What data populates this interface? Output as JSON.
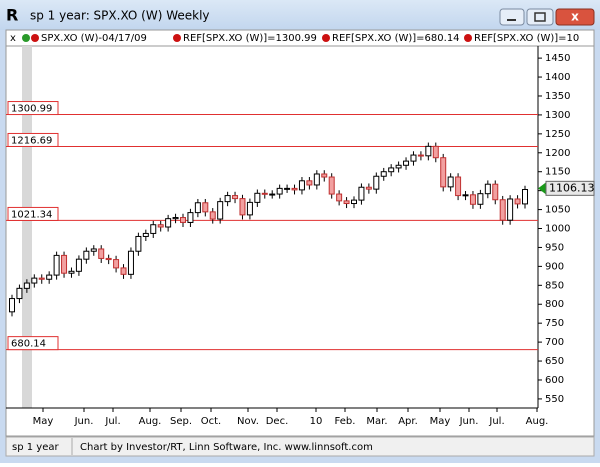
{
  "window": {
    "title": "sp 1 year: SPX.XO (W) Weekly"
  },
  "legend": [
    "SPX.XO (W)-04/17/09",
    "REF[SPX.XO (W)]=1300.99",
    "REF[SPX.XO (W)]=680.14",
    "REF[SPX.XO (W)]=10"
  ],
  "status": {
    "left": "sp 1 year",
    "right": "Chart by Investor/RT, Linn Software, Inc. www.linnsoft.com"
  },
  "chart_data": {
    "type": "candlestick",
    "x_labels": [
      "May",
      "Jun.",
      "Jul.",
      "Aug.",
      "Sep.",
      "Oct.",
      "Nov.",
      "Dec.",
      "10",
      "Feb.",
      "Mar.",
      "Apr.",
      "May",
      "Jun.",
      "Jul.",
      "Aug."
    ],
    "open": [
      780,
      815,
      842,
      856,
      869,
      866,
      877,
      929,
      882,
      887,
      919,
      940,
      946,
      921,
      918,
      896,
      879,
      940,
      979,
      987,
      1010,
      1004,
      1026,
      1029,
      1016,
      1042,
      1068,
      1044,
      1025,
      1071,
      1087,
      1079,
      1036,
      1069,
      1093,
      1091,
      1091,
      1106,
      1106,
      1102,
      1126,
      1115,
      1144,
      1136,
      1091,
      1073,
      1066,
      1075,
      1109,
      1104,
      1138,
      1150,
      1160,
      1167,
      1178,
      1194,
      1192,
      1217,
      1187,
      1110,
      1136,
      1087,
      1089,
      1064,
      1092,
      1117,
      1076,
      1022,
      1078,
      1065
    ],
    "high": [
      825,
      852,
      866,
      879,
      879,
      887,
      939,
      939,
      897,
      929,
      950,
      956,
      956,
      931,
      928,
      906,
      950,
      989,
      997,
      1020,
      1020,
      1036,
      1039,
      1039,
      1052,
      1078,
      1078,
      1054,
      1081,
      1097,
      1097,
      1089,
      1079,
      1103,
      1103,
      1101,
      1116,
      1116,
      1116,
      1136,
      1136,
      1154,
      1154,
      1146,
      1101,
      1083,
      1085,
      1119,
      1119,
      1148,
      1160,
      1170,
      1177,
      1188,
      1204,
      1204,
      1227,
      1227,
      1197,
      1146,
      1146,
      1099,
      1099,
      1102,
      1127,
      1127,
      1086,
      1088,
      1088,
      1113
    ],
    "low": [
      768,
      803,
      830,
      844,
      854,
      854,
      865,
      870,
      870,
      875,
      907,
      928,
      909,
      906,
      884,
      867,
      867,
      928,
      967,
      975,
      992,
      992,
      1014,
      1004,
      1004,
      1030,
      1032,
      1013,
      1013,
      1059,
      1067,
      1024,
      1024,
      1057,
      1079,
      1079,
      1079,
      1094,
      1090,
      1090,
      1103,
      1103,
      1124,
      1079,
      1061,
      1054,
      1054,
      1063,
      1092,
      1092,
      1126,
      1138,
      1148,
      1155,
      1166,
      1180,
      1180,
      1175,
      1098,
      1098,
      1075,
      1075,
      1052,
      1052,
      1080,
      1064,
      1010,
      1010,
      1053,
      1053
    ],
    "close": [
      815,
      842,
      856,
      869,
      866,
      877,
      929,
      882,
      887,
      919,
      940,
      946,
      921,
      918,
      896,
      879,
      940,
      979,
      987,
      1010,
      1004,
      1026,
      1029,
      1016,
      1042,
      1068,
      1044,
      1025,
      1071,
      1087,
      1079,
      1036,
      1069,
      1093,
      1091,
      1091,
      1106,
      1106,
      1102,
      1126,
      1115,
      1144,
      1136,
      1091,
      1073,
      1066,
      1075,
      1109,
      1104,
      1138,
      1150,
      1160,
      1167,
      1178,
      1194,
      1192,
      1217,
      1187,
      1110,
      1136,
      1087,
      1089,
      1064,
      1092,
      1117,
      1076,
      1022,
      1078,
      1065,
      1103
    ],
    "up_color": "#ffffff",
    "down_color": "#f2a0a0",
    "reference_lines": [
      1300.99,
      1216.69,
      1021.34,
      680.14
    ],
    "reference_color": "#e03030",
    "last_price": 1106.13,
    "last_color": "#1a9a1a",
    "ylim": [
      526,
      1482
    ],
    "yticks": [
      550,
      600,
      650,
      700,
      750,
      800,
      850,
      900,
      950,
      1000,
      1050,
      1100,
      1150,
      1200,
      1250,
      1300,
      1350,
      1400,
      1450
    ]
  }
}
